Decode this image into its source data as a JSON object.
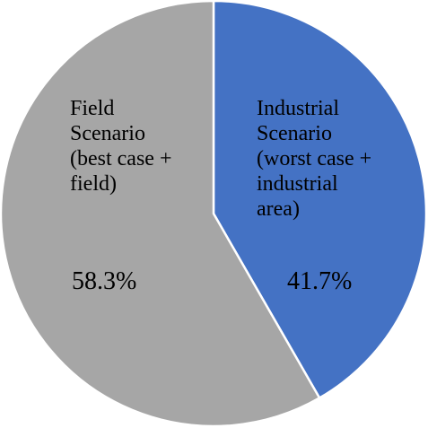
{
  "chart_data": {
    "type": "pie",
    "start_angle_deg": 0,
    "direction": "clockwise",
    "slices": [
      {
        "label_lines": [
          "Industrial",
          "Scenario",
          "(worst case +",
          "industrial",
          "area)"
        ],
        "value": 41.7,
        "value_label": "41.7%",
        "color": "#4472C4"
      },
      {
        "label_lines": [
          "Field",
          "Scenario",
          "(best case +",
          "field)"
        ],
        "value": 58.3,
        "value_label": "58.3%",
        "color": "#A6A6A6"
      }
    ],
    "slice_border_color": "#FFFFFF",
    "legend": "none"
  }
}
